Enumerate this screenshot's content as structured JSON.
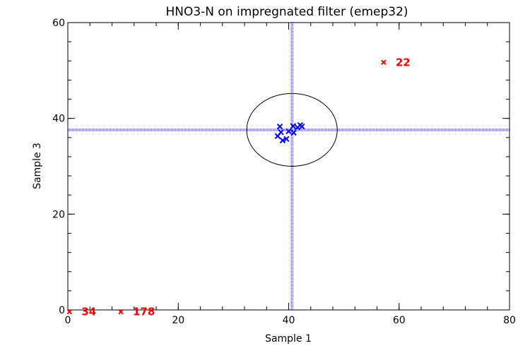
{
  "chart_data": {
    "type": "scatter",
    "title": "HNO3-N on impregnated filter (emep32)",
    "xlabel": "Sample 1",
    "ylabel": "Sample 3",
    "xlim": [
      0,
      80
    ],
    "ylim": [
      0,
      60
    ],
    "xticks": [
      0,
      20,
      40,
      60,
      80
    ],
    "yticks": [
      0,
      20,
      40,
      60
    ],
    "xtick_labels": [
      "0",
      "20",
      "40",
      "60",
      "80"
    ],
    "ytick_labels": [
      "0",
      "20",
      "40",
      "60"
    ],
    "x_minor_step": 4,
    "y_minor_step": 4,
    "reference_lines": {
      "x": 40.6,
      "y": 37.6
    },
    "ellipse": {
      "cx": 40.6,
      "cy": 37.6,
      "rx": 8.2,
      "ry": 7.6
    },
    "colors": {
      "inliers": "#0000ee",
      "outliers": "#ee0000",
      "reference": "#0000cc",
      "axes": "#000000"
    },
    "inliers": [
      {
        "x": 38.4,
        "y": 38.3
      },
      {
        "x": 38.6,
        "y": 37.1
      },
      {
        "x": 38.0,
        "y": 36.3
      },
      {
        "x": 38.9,
        "y": 35.4
      },
      {
        "x": 39.6,
        "y": 35.7
      },
      {
        "x": 40.0,
        "y": 37.3
      },
      {
        "x": 40.8,
        "y": 38.4
      },
      {
        "x": 40.9,
        "y": 37.0
      },
      {
        "x": 41.6,
        "y": 38.1
      },
      {
        "x": 42.1,
        "y": 38.6
      },
      {
        "x": 42.4,
        "y": 38.3
      }
    ],
    "outliers": [
      {
        "x": 57.2,
        "y": 51.7,
        "label": "22"
      },
      {
        "x": 0.3,
        "y": -0.4,
        "label": "34"
      },
      {
        "x": 9.6,
        "y": -0.4,
        "label": "178"
      }
    ]
  }
}
